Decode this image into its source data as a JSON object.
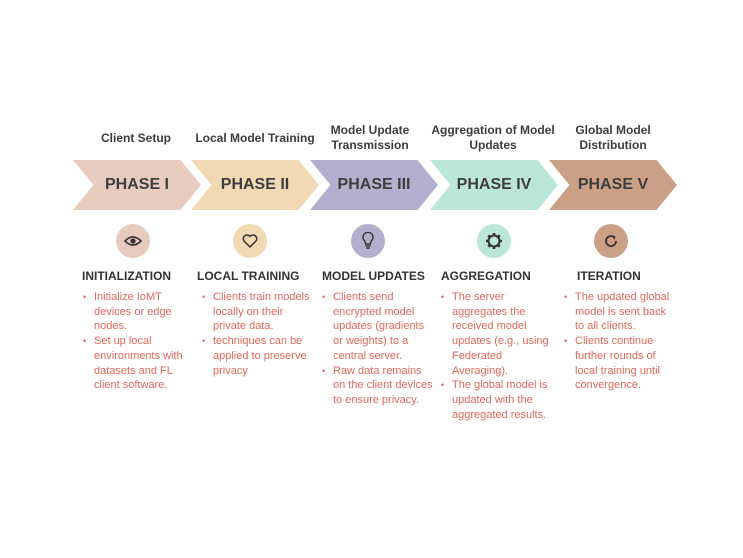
{
  "colors": {
    "phase1": "#e8cbbf",
    "phase2": "#f0d9b3",
    "phase3": "#b2b0ce",
    "phase4": "#bde6db",
    "phase5": "#cba087",
    "bullet_text": "#e0685a"
  },
  "phases": [
    {
      "header": "Client Setup",
      "label": "PHASE I",
      "icon": "eye-icon",
      "title": "INITIALIZATION",
      "bullets": [
        "Initialize IoMT devices or edge nodes.",
        "Set up local environments with datasets and FL client software."
      ]
    },
    {
      "header": "Local Model Training",
      "label": "PHASE II",
      "icon": "heart-icon",
      "title": "LOCAL TRAINING",
      "bullets": [
        "Clients train models locally on their private data.",
        "techniques can be applied to preserve privacy"
      ]
    },
    {
      "header": "Model Update Transmission",
      "label": "PHASE III",
      "icon": "lightbulb-icon",
      "title": "MODEL UPDATES",
      "bullets": [
        "Clients send encrypted model updates (gradients or weights) to a central server.",
        "Raw data remains on the client devices to ensure privacy."
      ]
    },
    {
      "header": "Aggregation of Model Updates",
      "label": "PHASE IV",
      "icon": "gear-icon",
      "title": "AGGREGATION",
      "bullets": [
        "The server aggregates the received model updates (e.g., using Federated Averaging).",
        "The global model is updated with the aggregated results."
      ]
    },
    {
      "header": "Global Model Distribution",
      "label": "PHASE V",
      "icon": "refresh-icon",
      "title": "ITERATION",
      "bullets": [
        "The updated global model is sent back to all clients.",
        "Clients continue further rounds of local training until convergence."
      ]
    }
  ]
}
